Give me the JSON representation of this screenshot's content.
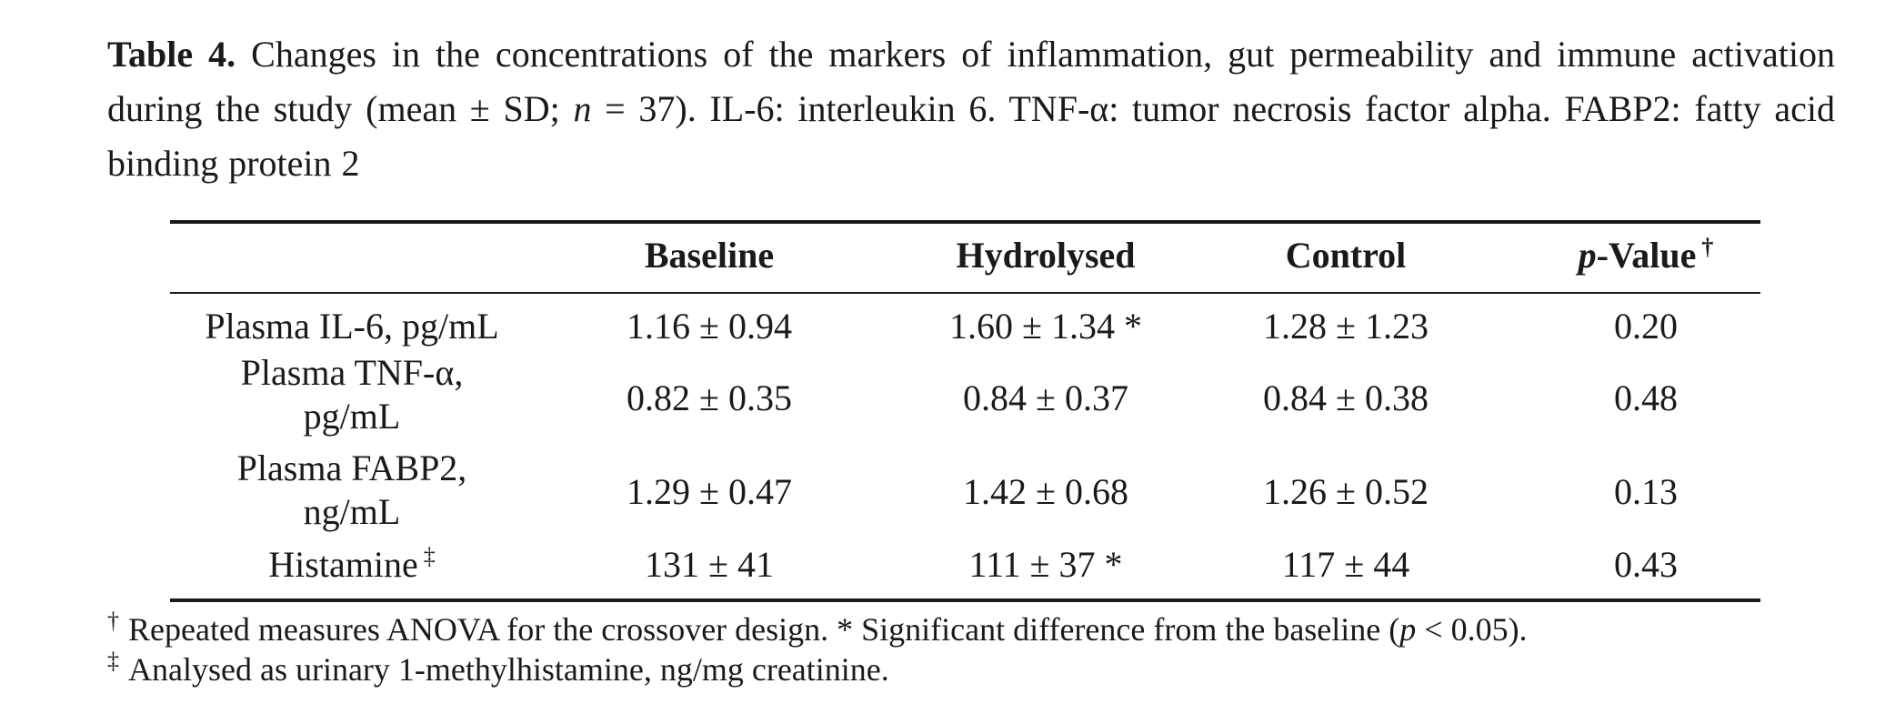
{
  "caption": {
    "label": "Table 4.",
    "text_part1": "Changes in the concentrations of the markers of inflammation, gut permeability and immune activation during the study (mean ± SD; ",
    "n_symbol": "n",
    "text_part2": " = 37). IL-6: interleukin 6. TNF-α: tumor necrosis factor alpha. FABP2: fatty acid binding protein 2"
  },
  "table": {
    "headers": {
      "col0": "",
      "col1": "Baseline",
      "col2": "Hydrolysed",
      "col3": "Control",
      "col4_italic": "p",
      "col4_rest": "-Value",
      "col4_mark": "†"
    },
    "rows": [
      {
        "label": "Plasma IL-6, pg/mL",
        "baseline": "1.16 ± 0.94",
        "hydrolysed": "1.60 ± 1.34 *",
        "control": "1.28 ± 1.23",
        "p_value": "0.20"
      },
      {
        "label_line1": "Plasma TNF-α,",
        "label_line2": "pg/mL",
        "baseline": "0.82 ± 0.35",
        "hydrolysed": "0.84 ± 0.37",
        "control": "0.84 ± 0.38",
        "p_value": "0.48"
      },
      {
        "label_line1": "Plasma FABP2,",
        "label_line2": "ng/mL",
        "baseline": "1.29 ± 0.47",
        "hydrolysed": "1.42 ± 0.68",
        "control": "1.26 ± 0.52",
        "p_value": "0.13"
      },
      {
        "label": "Histamine",
        "label_mark": "‡",
        "baseline": "131 ± 41",
        "hydrolysed": "111 ± 37 *",
        "control": "117 ± 44",
        "p_value": "0.43"
      }
    ]
  },
  "footnotes": {
    "fn1_mark": "†",
    "fn1_text_a": "Repeated measures ANOVA for the crossover design.  * Significant difference from the baseline (",
    "fn1_p": "p",
    "fn1_text_b": " < 0.05).",
    "fn2_mark": "‡",
    "fn2_text": "Analysed as urinary 1-methylhistamine, ng/mg creatinine."
  }
}
